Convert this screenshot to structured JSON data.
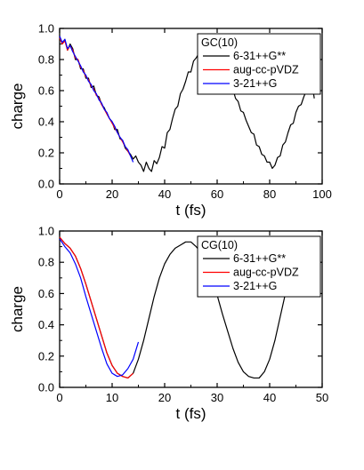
{
  "chart_data": [
    {
      "type": "line",
      "title": "",
      "xlabel": "t (fs)",
      "ylabel": "charge",
      "xlim": [
        0,
        100
      ],
      "ylim": [
        0.0,
        1.0
      ],
      "xticks": [
        "0",
        "20",
        "40",
        "60",
        "80",
        "100"
      ],
      "yticks": [
        "0.0",
        "0.2",
        "0.4",
        "0.6",
        "0.8",
        "1.0"
      ],
      "legend": {
        "title": "GC(10)",
        "position": "top-right",
        "entries": [
          "6-31++G**",
          "aug-cc-pVDZ",
          "3-21++G"
        ]
      },
      "grid": false,
      "series": [
        {
          "name": "6-31++G**",
          "color": "#000000",
          "x": [
            0,
            1,
            2,
            3,
            4,
            5,
            6,
            7,
            8,
            9,
            10,
            11,
            12,
            13,
            14,
            15,
            16,
            17,
            18,
            19,
            20,
            21,
            22,
            23,
            24,
            25,
            26,
            27,
            28,
            29,
            30,
            31,
            32,
            33,
            34,
            35,
            36,
            37,
            38,
            39,
            40,
            41,
            42,
            43,
            44,
            45,
            46,
            47,
            48,
            49,
            50,
            51,
            52,
            53,
            54,
            55,
            56,
            57,
            58,
            59,
            60,
            61,
            62,
            63,
            64,
            65,
            66,
            67,
            68,
            69,
            70,
            71,
            72,
            73,
            74,
            75,
            76,
            77,
            78,
            79,
            80,
            81,
            82,
            83,
            84,
            85,
            86,
            87,
            88,
            89,
            90,
            91,
            92,
            93,
            94,
            95,
            96,
            97
          ],
          "y": [
            0.95,
            0.9,
            0.93,
            0.86,
            0.9,
            0.87,
            0.8,
            0.8,
            0.74,
            0.74,
            0.68,
            0.68,
            0.62,
            0.63,
            0.57,
            0.56,
            0.51,
            0.49,
            0.45,
            0.42,
            0.4,
            0.35,
            0.35,
            0.29,
            0.28,
            0.23,
            0.21,
            0.19,
            0.16,
            0.18,
            0.14,
            0.12,
            0.08,
            0.14,
            0.1,
            0.08,
            0.15,
            0.13,
            0.17,
            0.24,
            0.23,
            0.33,
            0.35,
            0.42,
            0.48,
            0.5,
            0.58,
            0.61,
            0.66,
            0.72,
            0.72,
            0.79,
            0.81,
            0.84,
            0.88,
            0.86,
            0.9,
            0.86,
            0.84,
            0.82,
            0.77,
            0.78,
            0.71,
            0.71,
            0.65,
            0.62,
            0.61,
            0.55,
            0.53,
            0.47,
            0.46,
            0.41,
            0.37,
            0.33,
            0.32,
            0.25,
            0.24,
            0.19,
            0.18,
            0.14,
            0.14,
            0.1,
            0.12,
            0.17,
            0.18,
            0.25,
            0.27,
            0.33,
            0.38,
            0.39,
            0.46,
            0.5,
            0.51,
            0.56,
            0.6,
            0.6,
            0.66,
            0.55
          ],
          "note_segment": "x>=83 line shown as decreasing to 0.1 region near x=97"
        },
        {
          "name": "aug-cc-pVDZ",
          "color": "#ff0000",
          "x": [
            0,
            1,
            2,
            3,
            4,
            5,
            6,
            7,
            8,
            9,
            10,
            11,
            12,
            13,
            14,
            15,
            16,
            17,
            18,
            19,
            20,
            21,
            22,
            23,
            24,
            25,
            26,
            27
          ],
          "y": [
            0.94,
            0.9,
            0.92,
            0.86,
            0.89,
            0.86,
            0.81,
            0.8,
            0.75,
            0.73,
            0.69,
            0.67,
            0.63,
            0.61,
            0.57,
            0.55,
            0.51,
            0.48,
            0.45,
            0.42,
            0.39,
            0.36,
            0.33,
            0.3,
            0.27,
            0.24,
            0.21,
            0.18
          ]
        },
        {
          "name": "3-21++G",
          "color": "#0000ff",
          "x": [
            0,
            1,
            2,
            3,
            4,
            5,
            6,
            7,
            8,
            9,
            10,
            11,
            12,
            13,
            14,
            15,
            16,
            17,
            18,
            19,
            20,
            21,
            22,
            23,
            24,
            25,
            26,
            27,
            28
          ],
          "y": [
            0.95,
            0.91,
            0.93,
            0.87,
            0.89,
            0.85,
            0.82,
            0.79,
            0.76,
            0.72,
            0.7,
            0.66,
            0.64,
            0.6,
            0.58,
            0.54,
            0.52,
            0.48,
            0.46,
            0.42,
            0.4,
            0.37,
            0.33,
            0.3,
            0.28,
            0.24,
            0.22,
            0.18,
            0.14
          ]
        }
      ]
    },
    {
      "type": "line",
      "title": "",
      "xlabel": "t (fs)",
      "ylabel": "charge",
      "xlim": [
        0,
        50
      ],
      "ylim": [
        0.0,
        1.0
      ],
      "xticks": [
        "0",
        "10",
        "20",
        "30",
        "40",
        "50"
      ],
      "yticks": [
        "0.0",
        "0.2",
        "0.4",
        "0.6",
        "0.8",
        "1.0"
      ],
      "legend": {
        "title": "CG(10)",
        "position": "top-right",
        "entries": [
          "6-31++G**",
          "aug-cc-pVDZ",
          "3-21++G"
        ]
      },
      "grid": false,
      "series": [
        {
          "name": "6-31++G**",
          "color": "#000000",
          "x": [
            0,
            1,
            2,
            3,
            4,
            5,
            6,
            7,
            8,
            9,
            10,
            11,
            12,
            13,
            14,
            15,
            16,
            17,
            18,
            19,
            20,
            21,
            22,
            23,
            24,
            25,
            26,
            27,
            28,
            29,
            30,
            31,
            32,
            33,
            34,
            35,
            36,
            37,
            38,
            39,
            40,
            41,
            42,
            43,
            44
          ],
          "y": [
            0.96,
            0.92,
            0.89,
            0.84,
            0.76,
            0.66,
            0.55,
            0.44,
            0.33,
            0.22,
            0.14,
            0.09,
            0.07,
            0.06,
            0.09,
            0.18,
            0.3,
            0.44,
            0.58,
            0.7,
            0.79,
            0.85,
            0.89,
            0.91,
            0.93,
            0.93,
            0.9,
            0.86,
            0.79,
            0.7,
            0.59,
            0.47,
            0.36,
            0.25,
            0.16,
            0.1,
            0.07,
            0.06,
            0.06,
            0.1,
            0.18,
            0.3,
            0.45,
            0.6,
            0.76
          ]
        },
        {
          "name": "aug-cc-pVDZ",
          "color": "#ff0000",
          "x": [
            0,
            1,
            2,
            3,
            4,
            5,
            6,
            7,
            8,
            9,
            10,
            11,
            12,
            13,
            14
          ],
          "y": [
            0.96,
            0.92,
            0.89,
            0.84,
            0.76,
            0.66,
            0.55,
            0.44,
            0.33,
            0.22,
            0.14,
            0.09,
            0.07,
            0.06,
            0.09
          ]
        },
        {
          "name": "3-21++G",
          "color": "#0000ff",
          "x": [
            0,
            1,
            2,
            3,
            4,
            5,
            6,
            7,
            8,
            9,
            10,
            11,
            12,
            13,
            14,
            15
          ],
          "y": [
            0.95,
            0.9,
            0.86,
            0.79,
            0.7,
            0.58,
            0.47,
            0.36,
            0.25,
            0.15,
            0.09,
            0.07,
            0.08,
            0.12,
            0.18,
            0.29
          ]
        }
      ]
    }
  ]
}
